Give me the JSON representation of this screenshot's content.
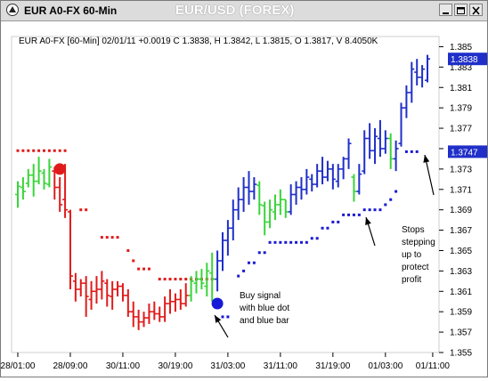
{
  "window": {
    "title": "EUR A0-FX 60-Min",
    "chart_title": "EUR/USD (FOREX)"
  },
  "header": {
    "info": "EUR A0-FX [60-Min] 02/01/11  +0.0019 C 1.3838, H 1.3842, L 1.3815, O 1.3817, V 8.4050K"
  },
  "colors": {
    "background": "#ffffff",
    "up_bar": "#1f2fc8",
    "down_bar": "#e01b1b",
    "neutral_bar": "#3ad43a",
    "sell_dot": "#e01b1b",
    "buy_dot": "#1818d8",
    "stop_dot_up": "#1a1ad0",
    "stop_dot_down": "#e01b1b"
  },
  "axis": {
    "price_ticks": [
      "1.385",
      "1.383",
      "1.381",
      "1.379",
      "1.377",
      "1.375",
      "1.373",
      "1.371",
      "1.369",
      "1.367",
      "1.365",
      "1.363",
      "1.361",
      "1.359",
      "1.357",
      "1.355"
    ],
    "time_ticks": [
      "28/01:00",
      "28/09:00",
      "30/11:00",
      "30/19:00",
      "31/03:00",
      "31/11:00",
      "31/19:00",
      "01/03:00",
      "01/11:00"
    ],
    "price_tag_last": "1.3838",
    "price_tag_stop": "1.3747"
  },
  "annotations": {
    "buy": [
      "Buy signal",
      "with blue dot",
      "and blue bar"
    ],
    "stops": [
      "Stops",
      "stepping",
      "up to",
      "protect",
      "profit"
    ]
  },
  "chart_data": {
    "type": "ohlc",
    "interval": "60-Min",
    "ylim": [
      1.355,
      1.386
    ],
    "last": {
      "open": 1.3817,
      "high": 1.3842,
      "low": 1.3815,
      "close": 1.3838,
      "change": 0.0019,
      "volume": "8.4050K"
    },
    "bars": [
      {
        "h": 1.3718,
        "l": 1.3692,
        "o": 1.3705,
        "c": 1.3713,
        "t": "g"
      },
      {
        "h": 1.3722,
        "l": 1.37,
        "o": 1.3712,
        "c": 1.3708,
        "t": "g"
      },
      {
        "h": 1.373,
        "l": 1.3712,
        "o": 1.3716,
        "c": 1.3724,
        "t": "g"
      },
      {
        "h": 1.3735,
        "l": 1.3703,
        "o": 1.3724,
        "c": 1.3718,
        "t": "g"
      },
      {
        "h": 1.3742,
        "l": 1.3715,
        "o": 1.3718,
        "c": 1.3728,
        "t": "g"
      },
      {
        "h": 1.373,
        "l": 1.371,
        "o": 1.3726,
        "c": 1.3716,
        "t": "g"
      },
      {
        "h": 1.374,
        "l": 1.3712,
        "o": 1.3715,
        "c": 1.3732,
        "t": "g"
      },
      {
        "h": 1.3732,
        "l": 1.37,
        "o": 1.3728,
        "c": 1.3712,
        "t": "r"
      },
      {
        "h": 1.3722,
        "l": 1.3688,
        "o": 1.3712,
        "c": 1.3695,
        "t": "r"
      },
      {
        "h": 1.3735,
        "l": 1.3682,
        "o": 1.37,
        "c": 1.369,
        "t": "r"
      },
      {
        "h": 1.369,
        "l": 1.3612,
        "o": 1.3688,
        "c": 1.3625,
        "t": "r"
      },
      {
        "h": 1.3628,
        "l": 1.36,
        "o": 1.362,
        "c": 1.3612,
        "t": "r"
      },
      {
        "h": 1.3622,
        "l": 1.3605,
        "o": 1.3612,
        "c": 1.3618,
        "t": "r"
      },
      {
        "h": 1.3625,
        "l": 1.3585,
        "o": 1.3618,
        "c": 1.3605,
        "t": "r"
      },
      {
        "h": 1.362,
        "l": 1.3592,
        "o": 1.3602,
        "c": 1.361,
        "t": "r"
      },
      {
        "h": 1.3625,
        "l": 1.3598,
        "o": 1.361,
        "c": 1.3612,
        "t": "r"
      },
      {
        "h": 1.363,
        "l": 1.3602,
        "o": 1.3612,
        "c": 1.362,
        "t": "r"
      },
      {
        "h": 1.3622,
        "l": 1.3595,
        "o": 1.3618,
        "c": 1.3606,
        "t": "r"
      },
      {
        "h": 1.362,
        "l": 1.3592,
        "o": 1.3605,
        "c": 1.3612,
        "t": "r"
      },
      {
        "h": 1.362,
        "l": 1.3605,
        "o": 1.3612,
        "c": 1.3615,
        "t": "r"
      },
      {
        "h": 1.3618,
        "l": 1.36,
        "o": 1.3615,
        "c": 1.3606,
        "t": "r"
      },
      {
        "h": 1.3612,
        "l": 1.3585,
        "o": 1.3606,
        "c": 1.359,
        "t": "r"
      },
      {
        "h": 1.36,
        "l": 1.3575,
        "o": 1.359,
        "c": 1.3585,
        "t": "r"
      },
      {
        "h": 1.3592,
        "l": 1.3572,
        "o": 1.3585,
        "c": 1.358,
        "t": "r"
      },
      {
        "h": 1.359,
        "l": 1.3575,
        "o": 1.358,
        "c": 1.3584,
        "t": "r"
      },
      {
        "h": 1.3598,
        "l": 1.3578,
        "o": 1.3584,
        "c": 1.359,
        "t": "r"
      },
      {
        "h": 1.36,
        "l": 1.3582,
        "o": 1.359,
        "c": 1.3588,
        "t": "r"
      },
      {
        "h": 1.3595,
        "l": 1.358,
        "o": 1.3588,
        "c": 1.3585,
        "t": "r"
      },
      {
        "h": 1.3605,
        "l": 1.358,
        "o": 1.3585,
        "c": 1.3598,
        "t": "r"
      },
      {
        "h": 1.3612,
        "l": 1.3588,
        "o": 1.3598,
        "c": 1.36,
        "t": "r"
      },
      {
        "h": 1.3608,
        "l": 1.359,
        "o": 1.36,
        "c": 1.3602,
        "t": "r"
      },
      {
        "h": 1.3612,
        "l": 1.3592,
        "o": 1.3602,
        "c": 1.3598,
        "t": "r"
      },
      {
        "h": 1.3618,
        "l": 1.3595,
        "o": 1.3598,
        "c": 1.3606,
        "t": "r"
      },
      {
        "h": 1.3625,
        "l": 1.36,
        "o": 1.3606,
        "c": 1.362,
        "t": "g"
      },
      {
        "h": 1.363,
        "l": 1.3608,
        "o": 1.3618,
        "c": 1.3622,
        "t": "g"
      },
      {
        "h": 1.3632,
        "l": 1.3612,
        "o": 1.3622,
        "c": 1.3618,
        "t": "g"
      },
      {
        "h": 1.3638,
        "l": 1.3605,
        "o": 1.3615,
        "c": 1.363,
        "t": "g"
      },
      {
        "h": 1.3648,
        "l": 1.36,
        "o": 1.3628,
        "c": 1.3622,
        "t": "g"
      },
      {
        "h": 1.365,
        "l": 1.361,
        "o": 1.3622,
        "c": 1.364,
        "t": "b"
      },
      {
        "h": 1.3668,
        "l": 1.363,
        "o": 1.364,
        "c": 1.366,
        "t": "b"
      },
      {
        "h": 1.368,
        "l": 1.3645,
        "o": 1.366,
        "c": 1.3672,
        "t": "b"
      },
      {
        "h": 1.37,
        "l": 1.366,
        "o": 1.3672,
        "c": 1.369,
        "t": "b"
      },
      {
        "h": 1.3712,
        "l": 1.368,
        "o": 1.369,
        "c": 1.37,
        "t": "b"
      },
      {
        "h": 1.3722,
        "l": 1.3688,
        "o": 1.37,
        "c": 1.3712,
        "t": "b"
      },
      {
        "h": 1.3728,
        "l": 1.3695,
        "o": 1.3712,
        "c": 1.3708,
        "t": "b"
      },
      {
        "h": 1.3722,
        "l": 1.37,
        "o": 1.3708,
        "c": 1.3715,
        "t": "b"
      },
      {
        "h": 1.3718,
        "l": 1.3685,
        "o": 1.3714,
        "c": 1.3695,
        "t": "g"
      },
      {
        "h": 1.3698,
        "l": 1.3665,
        "o": 1.3694,
        "c": 1.3678,
        "t": "g"
      },
      {
        "h": 1.37,
        "l": 1.3672,
        "o": 1.3678,
        "c": 1.369,
        "t": "g"
      },
      {
        "h": 1.3705,
        "l": 1.368,
        "o": 1.3688,
        "c": 1.3695,
        "t": "g"
      },
      {
        "h": 1.371,
        "l": 1.3685,
        "o": 1.3695,
        "c": 1.37,
        "t": "g"
      },
      {
        "h": 1.37,
        "l": 1.3682,
        "o": 1.37,
        "c": 1.3688,
        "t": "g"
      },
      {
        "h": 1.3715,
        "l": 1.3685,
        "o": 1.3688,
        "c": 1.3705,
        "t": "b"
      },
      {
        "h": 1.3718,
        "l": 1.3695,
        "o": 1.3705,
        "c": 1.3712,
        "t": "b"
      },
      {
        "h": 1.3722,
        "l": 1.37,
        "o": 1.3712,
        "c": 1.371,
        "t": "b"
      },
      {
        "h": 1.373,
        "l": 1.3705,
        "o": 1.371,
        "c": 1.3722,
        "t": "b"
      },
      {
        "h": 1.3725,
        "l": 1.3708,
        "o": 1.372,
        "c": 1.3715,
        "t": "b"
      },
      {
        "h": 1.3735,
        "l": 1.3712,
        "o": 1.3715,
        "c": 1.3728,
        "t": "b"
      },
      {
        "h": 1.3742,
        "l": 1.3715,
        "o": 1.3728,
        "c": 1.3722,
        "t": "b"
      },
      {
        "h": 1.3738,
        "l": 1.3718,
        "o": 1.3722,
        "c": 1.373,
        "t": "b"
      },
      {
        "h": 1.3735,
        "l": 1.371,
        "o": 1.373,
        "c": 1.372,
        "t": "b"
      },
      {
        "h": 1.3735,
        "l": 1.3712,
        "o": 1.3718,
        "c": 1.373,
        "t": "b"
      },
      {
        "h": 1.3742,
        "l": 1.372,
        "o": 1.373,
        "c": 1.374,
        "t": "b"
      },
      {
        "h": 1.376,
        "l": 1.373,
        "o": 1.374,
        "c": 1.3755,
        "t": "b"
      },
      {
        "h": 1.3725,
        "l": 1.3698,
        "o": 1.3722,
        "c": 1.3708,
        "t": "g"
      },
      {
        "h": 1.3735,
        "l": 1.3705,
        "o": 1.3708,
        "c": 1.3725,
        "t": "b"
      },
      {
        "h": 1.3768,
        "l": 1.3725,
        "o": 1.3728,
        "c": 1.376,
        "t": "b"
      },
      {
        "h": 1.3775,
        "l": 1.374,
        "o": 1.376,
        "c": 1.3748,
        "t": "b"
      },
      {
        "h": 1.377,
        "l": 1.3735,
        "o": 1.3748,
        "c": 1.3762,
        "t": "b"
      },
      {
        "h": 1.3778,
        "l": 1.3742,
        "o": 1.376,
        "c": 1.375,
        "t": "b"
      },
      {
        "h": 1.3768,
        "l": 1.3745,
        "o": 1.375,
        "c": 1.376,
        "t": "b"
      },
      {
        "h": 1.3765,
        "l": 1.373,
        "o": 1.376,
        "c": 1.374,
        "t": "g"
      },
      {
        "h": 1.3758,
        "l": 1.3728,
        "o": 1.374,
        "c": 1.375,
        "t": "b"
      },
      {
        "h": 1.3795,
        "l": 1.3752,
        "o": 1.3755,
        "c": 1.379,
        "t": "b"
      },
      {
        "h": 1.3812,
        "l": 1.378,
        "o": 1.379,
        "c": 1.3805,
        "t": "b"
      },
      {
        "h": 1.3835,
        "l": 1.3795,
        "o": 1.3805,
        "c": 1.3828,
        "t": "b"
      },
      {
        "h": 1.3838,
        "l": 1.3812,
        "o": 1.3825,
        "c": 1.382,
        "t": "b"
      },
      {
        "h": 1.3832,
        "l": 1.381,
        "o": 1.382,
        "c": 1.3828,
        "t": "b"
      },
      {
        "h": 1.3842,
        "l": 1.3815,
        "o": 1.3817,
        "c": 1.3838,
        "t": "b"
      }
    ],
    "stop_dots": [
      {
        "i": 0,
        "v": 1.3748,
        "c": "r"
      },
      {
        "i": 1,
        "v": 1.3748,
        "c": "r"
      },
      {
        "i": 2,
        "v": 1.3748,
        "c": "r"
      },
      {
        "i": 3,
        "v": 1.3748,
        "c": "r"
      },
      {
        "i": 4,
        "v": 1.3748,
        "c": "r"
      },
      {
        "i": 5,
        "v": 1.3748,
        "c": "r"
      },
      {
        "i": 6,
        "v": 1.3748,
        "c": "r"
      },
      {
        "i": 7,
        "v": 1.3748,
        "c": "r"
      },
      {
        "i": 8,
        "v": 1.3748,
        "c": "r"
      },
      {
        "i": 9,
        "v": 1.3748,
        "c": "r"
      },
      {
        "i": 12,
        "v": 1.369,
        "c": "r"
      },
      {
        "i": 13,
        "v": 1.369,
        "c": "r"
      },
      {
        "i": 16,
        "v": 1.3663,
        "c": "r"
      },
      {
        "i": 17,
        "v": 1.3663,
        "c": "r"
      },
      {
        "i": 18,
        "v": 1.3663,
        "c": "r"
      },
      {
        "i": 19,
        "v": 1.3663,
        "c": "r"
      },
      {
        "i": 21,
        "v": 1.365,
        "c": "r"
      },
      {
        "i": 22,
        "v": 1.364,
        "c": "r"
      },
      {
        "i": 23,
        "v": 1.3632,
        "c": "r"
      },
      {
        "i": 24,
        "v": 1.3632,
        "c": "r"
      },
      {
        "i": 25,
        "v": 1.3632,
        "c": "r"
      },
      {
        "i": 27,
        "v": 1.3622,
        "c": "r"
      },
      {
        "i": 28,
        "v": 1.3622,
        "c": "r"
      },
      {
        "i": 29,
        "v": 1.3622,
        "c": "r"
      },
      {
        "i": 30,
        "v": 1.3622,
        "c": "r"
      },
      {
        "i": 31,
        "v": 1.3622,
        "c": "r"
      },
      {
        "i": 32,
        "v": 1.3622,
        "c": "r"
      },
      {
        "i": 33,
        "v": 1.3622,
        "c": "r"
      },
      {
        "i": 34,
        "v": 1.3622,
        "c": "r"
      },
      {
        "i": 35,
        "v": 1.3622,
        "c": "r"
      },
      {
        "i": 36,
        "v": 1.3622,
        "c": "r"
      },
      {
        "i": 37,
        "v": 1.3622,
        "c": "r"
      },
      {
        "i": 39,
        "v": 1.3585,
        "c": "b"
      },
      {
        "i": 40,
        "v": 1.3585,
        "c": "b"
      },
      {
        "i": 42,
        "v": 1.3625,
        "c": "b"
      },
      {
        "i": 43,
        "v": 1.363,
        "c": "b"
      },
      {
        "i": 44,
        "v": 1.3638,
        "c": "b"
      },
      {
        "i": 45,
        "v": 1.3638,
        "c": "b"
      },
      {
        "i": 46,
        "v": 1.3648,
        "c": "b"
      },
      {
        "i": 47,
        "v": 1.3648,
        "c": "b"
      },
      {
        "i": 48,
        "v": 1.3658,
        "c": "b"
      },
      {
        "i": 49,
        "v": 1.3658,
        "c": "b"
      },
      {
        "i": 50,
        "v": 1.3658,
        "c": "b"
      },
      {
        "i": 51,
        "v": 1.3658,
        "c": "b"
      },
      {
        "i": 52,
        "v": 1.3658,
        "c": "b"
      },
      {
        "i": 53,
        "v": 1.3658,
        "c": "b"
      },
      {
        "i": 54,
        "v": 1.3658,
        "c": "b"
      },
      {
        "i": 55,
        "v": 1.3658,
        "c": "b"
      },
      {
        "i": 56,
        "v": 1.3662,
        "c": "b"
      },
      {
        "i": 57,
        "v": 1.3662,
        "c": "b"
      },
      {
        "i": 58,
        "v": 1.3672,
        "c": "b"
      },
      {
        "i": 59,
        "v": 1.3672,
        "c": "b"
      },
      {
        "i": 60,
        "v": 1.3678,
        "c": "b"
      },
      {
        "i": 61,
        "v": 1.3678,
        "c": "b"
      },
      {
        "i": 62,
        "v": 1.3685,
        "c": "b"
      },
      {
        "i": 63,
        "v": 1.3685,
        "c": "b"
      },
      {
        "i": 64,
        "v": 1.3685,
        "c": "b"
      },
      {
        "i": 65,
        "v": 1.3685,
        "c": "b"
      },
      {
        "i": 66,
        "v": 1.369,
        "c": "b"
      },
      {
        "i": 67,
        "v": 1.369,
        "c": "b"
      },
      {
        "i": 68,
        "v": 1.369,
        "c": "b"
      },
      {
        "i": 69,
        "v": 1.369,
        "c": "b"
      },
      {
        "i": 70,
        "v": 1.3695,
        "c": "b"
      },
      {
        "i": 71,
        "v": 1.37,
        "c": "b"
      },
      {
        "i": 72,
        "v": 1.3708,
        "c": "b"
      },
      {
        "i": 74,
        "v": 1.3747,
        "c": "b"
      },
      {
        "i": 75,
        "v": 1.3747,
        "c": "b"
      },
      {
        "i": 76,
        "v": 1.3747,
        "c": "b"
      }
    ],
    "signals": [
      {
        "type": "sell",
        "i": 8,
        "v": 1.373
      },
      {
        "type": "buy",
        "i": 38,
        "v": 1.3598
      }
    ]
  }
}
